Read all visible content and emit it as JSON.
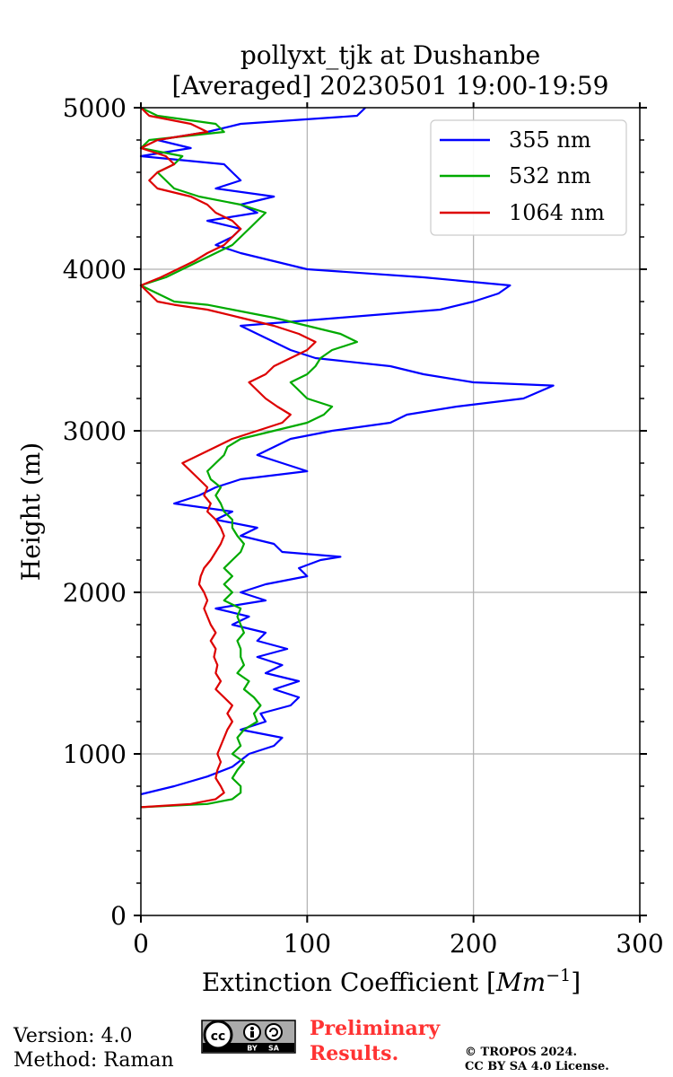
{
  "chart_data": {
    "type": "line",
    "title_line1": "pollyxt_tjk at Dushanbe",
    "title_line2": "[Averaged] 20230501 19:00-19:59",
    "xlabel": "Extinction Coefficient [",
    "xlabel_unit": "Mm",
    "xlabel_exp": "−1",
    "xlabel_close": "]",
    "ylabel": "Height (m)",
    "xlim": [
      0,
      300
    ],
    "ylim": [
      0,
      5000
    ],
    "xticks": [
      0,
      100,
      200,
      300
    ],
    "yticks": [
      0,
      1000,
      2000,
      3000,
      4000,
      5000
    ],
    "grid": true,
    "legend_position": "top-right",
    "series": [
      {
        "name": "355 nm",
        "color": "#0000ff",
        "points": [
          [
            0,
            750
          ],
          [
            20,
            800
          ],
          [
            40,
            860
          ],
          [
            55,
            920
          ],
          [
            60,
            960
          ],
          [
            65,
            1000
          ],
          [
            80,
            1050
          ],
          [
            85,
            1100
          ],
          [
            60,
            1150
          ],
          [
            75,
            1200
          ],
          [
            72,
            1250
          ],
          [
            90,
            1300
          ],
          [
            95,
            1350
          ],
          [
            80,
            1400
          ],
          [
            95,
            1450
          ],
          [
            75,
            1500
          ],
          [
            85,
            1550
          ],
          [
            70,
            1600
          ],
          [
            88,
            1650
          ],
          [
            70,
            1700
          ],
          [
            75,
            1750
          ],
          [
            55,
            1800
          ],
          [
            65,
            1850
          ],
          [
            45,
            1900
          ],
          [
            75,
            1950
          ],
          [
            60,
            2000
          ],
          [
            75,
            2050
          ],
          [
            100,
            2100
          ],
          [
            95,
            2150
          ],
          [
            108,
            2200
          ],
          [
            120,
            2220
          ],
          [
            85,
            2250
          ],
          [
            80,
            2300
          ],
          [
            60,
            2350
          ],
          [
            70,
            2400
          ],
          [
            45,
            2450
          ],
          [
            55,
            2500
          ],
          [
            20,
            2550
          ],
          [
            35,
            2600
          ],
          [
            45,
            2650
          ],
          [
            60,
            2700
          ],
          [
            100,
            2750
          ],
          [
            85,
            2800
          ],
          [
            70,
            2850
          ],
          [
            80,
            2900
          ],
          [
            90,
            2950
          ],
          [
            115,
            3000
          ],
          [
            150,
            3050
          ],
          [
            160,
            3100
          ],
          [
            190,
            3150
          ],
          [
            230,
            3200
          ],
          [
            248,
            3280
          ],
          [
            200,
            3300
          ],
          [
            170,
            3350
          ],
          [
            150,
            3400
          ],
          [
            105,
            3450
          ],
          [
            90,
            3500
          ],
          [
            80,
            3550
          ],
          [
            70,
            3600
          ],
          [
            60,
            3650
          ],
          [
            120,
            3700
          ],
          [
            180,
            3750
          ],
          [
            200,
            3800
          ],
          [
            215,
            3850
          ],
          [
            222,
            3900
          ],
          [
            170,
            3950
          ],
          [
            100,
            4000
          ],
          [
            80,
            4050
          ],
          [
            60,
            4100
          ],
          [
            45,
            4150
          ],
          [
            55,
            4200
          ],
          [
            60,
            4250
          ],
          [
            40,
            4300
          ],
          [
            70,
            4350
          ],
          [
            60,
            4400
          ],
          [
            80,
            4450
          ],
          [
            45,
            4500
          ],
          [
            60,
            4550
          ],
          [
            55,
            4600
          ],
          [
            50,
            4650
          ],
          [
            0,
            4700
          ],
          [
            30,
            4750
          ],
          [
            10,
            4800
          ],
          [
            40,
            4850
          ],
          [
            60,
            4900
          ],
          [
            130,
            4950
          ],
          [
            135,
            5000
          ]
        ]
      },
      {
        "name": "532 nm",
        "color": "#00aa00",
        "points": [
          [
            0,
            670
          ],
          [
            40,
            690
          ],
          [
            55,
            720
          ],
          [
            60,
            760
          ],
          [
            60,
            800
          ],
          [
            55,
            850
          ],
          [
            58,
            900
          ],
          [
            62,
            950
          ],
          [
            55,
            1000
          ],
          [
            60,
            1050
          ],
          [
            58,
            1100
          ],
          [
            62,
            1150
          ],
          [
            70,
            1200
          ],
          [
            68,
            1250
          ],
          [
            72,
            1300
          ],
          [
            68,
            1350
          ],
          [
            62,
            1400
          ],
          [
            65,
            1450
          ],
          [
            58,
            1500
          ],
          [
            62,
            1550
          ],
          [
            60,
            1600
          ],
          [
            60,
            1650
          ],
          [
            58,
            1700
          ],
          [
            62,
            1750
          ],
          [
            60,
            1800
          ],
          [
            58,
            1850
          ],
          [
            60,
            1900
          ],
          [
            50,
            1950
          ],
          [
            55,
            2000
          ],
          [
            50,
            2050
          ],
          [
            55,
            2100
          ],
          [
            50,
            2150
          ],
          [
            55,
            2200
          ],
          [
            60,
            2250
          ],
          [
            62,
            2300
          ],
          [
            58,
            2350
          ],
          [
            55,
            2400
          ],
          [
            55,
            2450
          ],
          [
            50,
            2500
          ],
          [
            48,
            2550
          ],
          [
            45,
            2600
          ],
          [
            48,
            2650
          ],
          [
            42,
            2700
          ],
          [
            40,
            2750
          ],
          [
            45,
            2800
          ],
          [
            50,
            2850
          ],
          [
            52,
            2900
          ],
          [
            60,
            2950
          ],
          [
            80,
            3000
          ],
          [
            100,
            3050
          ],
          [
            110,
            3100
          ],
          [
            115,
            3150
          ],
          [
            100,
            3200
          ],
          [
            95,
            3250
          ],
          [
            90,
            3300
          ],
          [
            100,
            3350
          ],
          [
            105,
            3400
          ],
          [
            108,
            3450
          ],
          [
            115,
            3500
          ],
          [
            130,
            3550
          ],
          [
            120,
            3600
          ],
          [
            100,
            3650
          ],
          [
            80,
            3700
          ],
          [
            55,
            3750
          ],
          [
            40,
            3780
          ],
          [
            20,
            3800
          ],
          [
            10,
            3850
          ],
          [
            0,
            3900
          ],
          [
            15,
            3950
          ],
          [
            25,
            4000
          ],
          [
            35,
            4050
          ],
          [
            45,
            4100
          ],
          [
            55,
            4150
          ],
          [
            60,
            4200
          ],
          [
            65,
            4250
          ],
          [
            70,
            4300
          ],
          [
            75,
            4350
          ],
          [
            60,
            4400
          ],
          [
            35,
            4450
          ],
          [
            20,
            4500
          ],
          [
            15,
            4550
          ],
          [
            10,
            4600
          ],
          [
            20,
            4650
          ],
          [
            25,
            4700
          ],
          [
            0,
            4750
          ],
          [
            5,
            4800
          ],
          [
            50,
            4850
          ],
          [
            45,
            4900
          ],
          [
            10,
            4950
          ],
          [
            0,
            5000
          ]
        ]
      },
      {
        "name": "1064 nm",
        "color": "#dd0000",
        "points": [
          [
            0,
            670
          ],
          [
            30,
            690
          ],
          [
            45,
            720
          ],
          [
            50,
            760
          ],
          [
            48,
            800
          ],
          [
            45,
            850
          ],
          [
            46,
            900
          ],
          [
            48,
            950
          ],
          [
            46,
            1000
          ],
          [
            48,
            1050
          ],
          [
            50,
            1100
          ],
          [
            52,
            1150
          ],
          [
            55,
            1200
          ],
          [
            52,
            1250
          ],
          [
            55,
            1300
          ],
          [
            50,
            1350
          ],
          [
            45,
            1400
          ],
          [
            48,
            1450
          ],
          [
            45,
            1500
          ],
          [
            46,
            1550
          ],
          [
            44,
            1600
          ],
          [
            45,
            1650
          ],
          [
            42,
            1700
          ],
          [
            45,
            1750
          ],
          [
            42,
            1800
          ],
          [
            40,
            1850
          ],
          [
            38,
            1900
          ],
          [
            40,
            1950
          ],
          [
            38,
            2000
          ],
          [
            35,
            2050
          ],
          [
            36,
            2100
          ],
          [
            38,
            2150
          ],
          [
            42,
            2200
          ],
          [
            45,
            2250
          ],
          [
            48,
            2300
          ],
          [
            50,
            2350
          ],
          [
            48,
            2400
          ],
          [
            45,
            2450
          ],
          [
            40,
            2500
          ],
          [
            42,
            2550
          ],
          [
            38,
            2600
          ],
          [
            40,
            2650
          ],
          [
            35,
            2700
          ],
          [
            30,
            2750
          ],
          [
            25,
            2800
          ],
          [
            35,
            2850
          ],
          [
            45,
            2900
          ],
          [
            55,
            2950
          ],
          [
            70,
            3000
          ],
          [
            85,
            3050
          ],
          [
            90,
            3100
          ],
          [
            82,
            3150
          ],
          [
            75,
            3200
          ],
          [
            70,
            3250
          ],
          [
            65,
            3300
          ],
          [
            75,
            3350
          ],
          [
            80,
            3400
          ],
          [
            90,
            3450
          ],
          [
            100,
            3500
          ],
          [
            105,
            3550
          ],
          [
            95,
            3600
          ],
          [
            80,
            3650
          ],
          [
            60,
            3700
          ],
          [
            40,
            3750
          ],
          [
            20,
            3780
          ],
          [
            10,
            3800
          ],
          [
            5,
            3850
          ],
          [
            0,
            3900
          ],
          [
            12,
            3950
          ],
          [
            22,
            4000
          ],
          [
            32,
            4050
          ],
          [
            40,
            4100
          ],
          [
            50,
            4150
          ],
          [
            55,
            4200
          ],
          [
            60,
            4250
          ],
          [
            55,
            4300
          ],
          [
            45,
            4350
          ],
          [
            40,
            4400
          ],
          [
            30,
            4450
          ],
          [
            10,
            4500
          ],
          [
            5,
            4550
          ],
          [
            10,
            4600
          ],
          [
            20,
            4650
          ],
          [
            15,
            4700
          ],
          [
            0,
            4750
          ],
          [
            10,
            4800
          ],
          [
            40,
            4850
          ],
          [
            30,
            4900
          ],
          [
            5,
            4950
          ],
          [
            0,
            5000
          ]
        ]
      }
    ]
  },
  "footer": {
    "version": "Version: 4.0",
    "method": "Method: Raman",
    "prelim_line1": "Preliminary",
    "prelim_line2": "Results.",
    "copyright_line1": "© TROPOS 2024.",
    "copyright_line2": "CC BY SA 4.0 License.",
    "cc_by": "BY",
    "cc_sa": "SA",
    "prelim_color": "#ff3333"
  }
}
